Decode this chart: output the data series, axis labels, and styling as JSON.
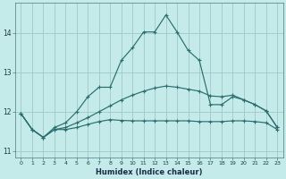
{
  "xlabel": "Humidex (Indice chaleur)",
  "bg_color": "#c5eaea",
  "grid_color": "#a0c8c8",
  "line_color": "#2a6e6e",
  "xlim": [
    -0.5,
    23.5
  ],
  "ylim": [
    10.85,
    14.75
  ],
  "xticks": [
    0,
    1,
    2,
    3,
    4,
    5,
    6,
    7,
    8,
    9,
    10,
    11,
    12,
    13,
    14,
    15,
    16,
    17,
    18,
    19,
    20,
    21,
    22,
    23
  ],
  "yticks": [
    11,
    12,
    13,
    14
  ],
  "line1_y": [
    11.95,
    11.55,
    11.35,
    11.55,
    11.55,
    11.6,
    11.68,
    11.75,
    11.8,
    11.78,
    11.77,
    11.77,
    11.77,
    11.77,
    11.77,
    11.77,
    11.75,
    11.75,
    11.75,
    11.77,
    11.77,
    11.75,
    11.72,
    11.55
  ],
  "line2_y": [
    11.95,
    11.55,
    11.35,
    11.55,
    11.6,
    11.72,
    11.85,
    12.0,
    12.15,
    12.3,
    12.42,
    12.52,
    12.6,
    12.65,
    12.62,
    12.57,
    12.52,
    12.4,
    12.38,
    12.42,
    12.3,
    12.18,
    12.02,
    11.6
  ],
  "line3_y": [
    11.95,
    11.55,
    11.35,
    11.6,
    11.72,
    12.0,
    12.38,
    12.62,
    12.62,
    13.3,
    13.62,
    14.02,
    14.02,
    14.45,
    14.02,
    13.55,
    13.3,
    12.18,
    12.18,
    12.38,
    12.3,
    12.18,
    12.02,
    11.6
  ],
  "marker": "+",
  "markersize": 3.5,
  "linewidth": 0.85
}
